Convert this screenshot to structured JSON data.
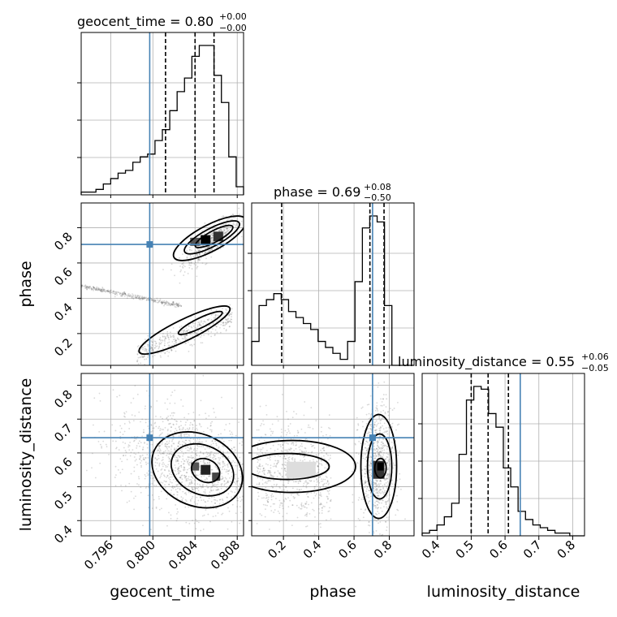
{
  "chart_data": {
    "type": "corner",
    "parameters": [
      "geocent_time",
      "phase",
      "luminosity_distance"
    ],
    "axes": {
      "geocent_time": {
        "ticks": [
          0.796,
          0.8,
          0.804,
          0.808
        ],
        "tick_labels": [
          "0.796",
          "0.800",
          "0.804",
          "0.808"
        ],
        "range": [
          0.7932,
          0.8086
        ]
      },
      "phase": {
        "ticks": [
          0.2,
          0.4,
          0.6,
          0.8
        ],
        "tick_labels": [
          "0.2",
          "0.4",
          "0.6",
          "0.8"
        ],
        "range": [
          0.02,
          0.94
        ]
      },
      "luminosity_distance": {
        "ticks": [
          0.4,
          0.5,
          0.6,
          0.7,
          0.8
        ],
        "tick_labels": [
          "0.4",
          "0.5",
          "0.6",
          "0.7",
          "0.8"
        ],
        "range": [
          0.355,
          0.835
        ]
      }
    },
    "truths": {
      "geocent_time": 0.7997,
      "phase": 0.705,
      "luminosity_distance": 0.645
    },
    "titles": {
      "geocent_time": {
        "label": "geocent_time = 0.80",
        "plus": "+0.00",
        "minus": "−0.00"
      },
      "phase": {
        "label": "phase = 0.69",
        "plus": "+0.08",
        "minus": "−0.50"
      },
      "luminosity_distance": {
        "label": "luminosity_distance = 0.55",
        "plus": "+0.06",
        "minus": "−0.05"
      }
    },
    "quantiles": {
      "geocent_time": [
        0.8012,
        0.804,
        0.8058
      ],
      "phase": [
        0.19,
        0.69,
        0.77
      ],
      "luminosity_distance": [
        0.5,
        0.55,
        0.61
      ]
    },
    "histograms": {
      "geocent_time": {
        "edges": [
          0.7932,
          0.7939,
          0.7946,
          0.7953,
          0.796,
          0.7967,
          0.7974,
          0.7981,
          0.7988,
          0.7995,
          0.8002,
          0.8009,
          0.8016,
          0.8023,
          0.803,
          0.8037,
          0.8044,
          0.8051,
          0.8058,
          0.8065,
          0.8072,
          0.8079,
          0.8086
        ],
        "counts": [
          1,
          1,
          2,
          4,
          6,
          8,
          9,
          12,
          14,
          15,
          20,
          24,
          31,
          38,
          43,
          51,
          55,
          55,
          44,
          34,
          14,
          3
        ]
      },
      "phase": {
        "edges": [
          0.02,
          0.0618,
          0.1036,
          0.1455,
          0.1873,
          0.2291,
          0.2709,
          0.3127,
          0.3545,
          0.3964,
          0.4382,
          0.48,
          0.5218,
          0.5636,
          0.6055,
          0.6473,
          0.6891,
          0.7309,
          0.7727,
          0.8145,
          0.8564,
          0.8982,
          0.94
        ],
        "counts": [
          4,
          10,
          11,
          12,
          11,
          9,
          8,
          7,
          6,
          4,
          3,
          2,
          1,
          4,
          14,
          23,
          25,
          24,
          10,
          0,
          0,
          0
        ]
      },
      "luminosity_distance": {
        "edges": [
          0.355,
          0.3768,
          0.3986,
          0.4205,
          0.4423,
          0.4641,
          0.4859,
          0.5077,
          0.5295,
          0.5514,
          0.5732,
          0.595,
          0.6168,
          0.6386,
          0.6605,
          0.6823,
          0.7041,
          0.7259,
          0.7477,
          0.7695,
          0.7914,
          0.8132,
          0.835
        ],
        "counts": [
          1,
          2,
          4,
          7,
          12,
          30,
          50,
          55,
          54,
          45,
          40,
          25,
          18,
          9,
          6,
          4,
          3,
          2,
          1,
          1,
          0,
          0
        ]
      }
    }
  }
}
